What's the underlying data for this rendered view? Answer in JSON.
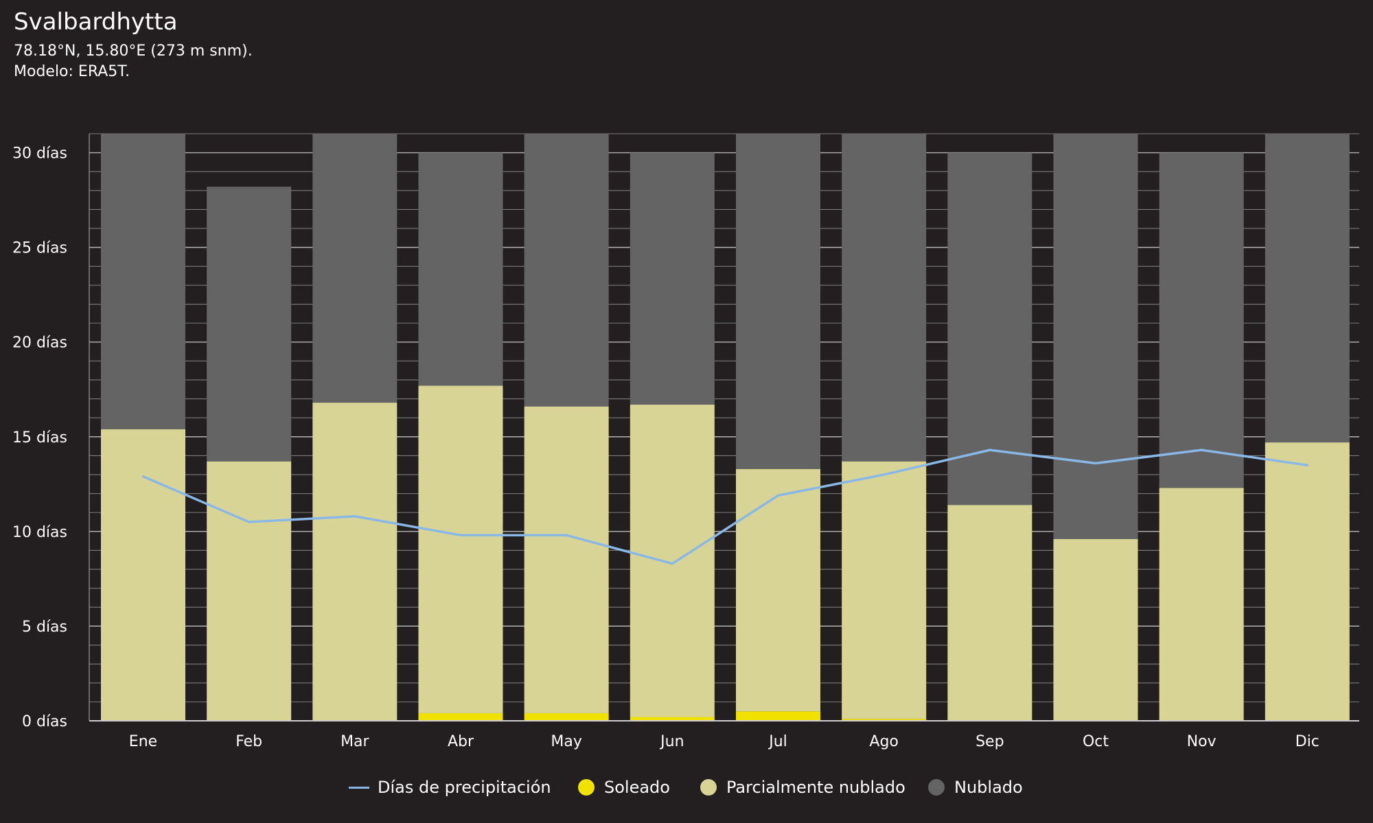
{
  "header": {
    "title": "Svalbardhytta",
    "coords": "78.18°N, 15.80°E (273 m snm).",
    "model": "Modelo: ERA5T."
  },
  "colors": {
    "background": "#231f20",
    "sunny": "#f0e100",
    "partly": "#d8d496",
    "cloudy": "#646464",
    "precip": "#8ab8e6",
    "grid": "#9a9a9a",
    "text": "#ffffff"
  },
  "legend": {
    "precip": "Días de precipitación",
    "sunny": "Soleado",
    "partly": "Parcialmente nublado",
    "cloudy": "Nublado"
  },
  "chart_data": {
    "type": "bar",
    "stacked": true,
    "categories": [
      "Ene",
      "Feb",
      "Mar",
      "Abr",
      "May",
      "Jun",
      "Jul",
      "Ago",
      "Sep",
      "Oct",
      "Nov",
      "Dic"
    ],
    "series": [
      {
        "name": "Soleado",
        "values": [
          0,
          0,
          0,
          0.4,
          0.4,
          0.2,
          0.5,
          0.1,
          0,
          0,
          0,
          0
        ]
      },
      {
        "name": "Parcialmente nublado",
        "values": [
          15.4,
          13.7,
          16.8,
          17.3,
          16.2,
          16.5,
          12.8,
          13.6,
          11.4,
          9.6,
          12.3,
          14.7
        ]
      },
      {
        "name": "Nublado",
        "values": [
          15.6,
          14.5,
          14.2,
          12.3,
          14.4,
          13.3,
          17.7,
          17.3,
          18.6,
          21.4,
          17.7,
          16.3
        ]
      }
    ],
    "line_series": {
      "name": "Días de precipitación",
      "values": [
        12.9,
        10.5,
        10.8,
        9.8,
        9.8,
        8.3,
        11.9,
        13.0,
        14.3,
        13.6,
        14.3,
        13.5
      ]
    },
    "y_tick_values": [
      0,
      5,
      10,
      15,
      20,
      25,
      30
    ],
    "y_tick_labels": [
      "0 días",
      "5 días",
      "10 días",
      "15 días",
      "20 días",
      "25 días",
      "30 días"
    ],
    "ylim": [
      0,
      31
    ],
    "grid": true,
    "legend_position": "bottom"
  }
}
